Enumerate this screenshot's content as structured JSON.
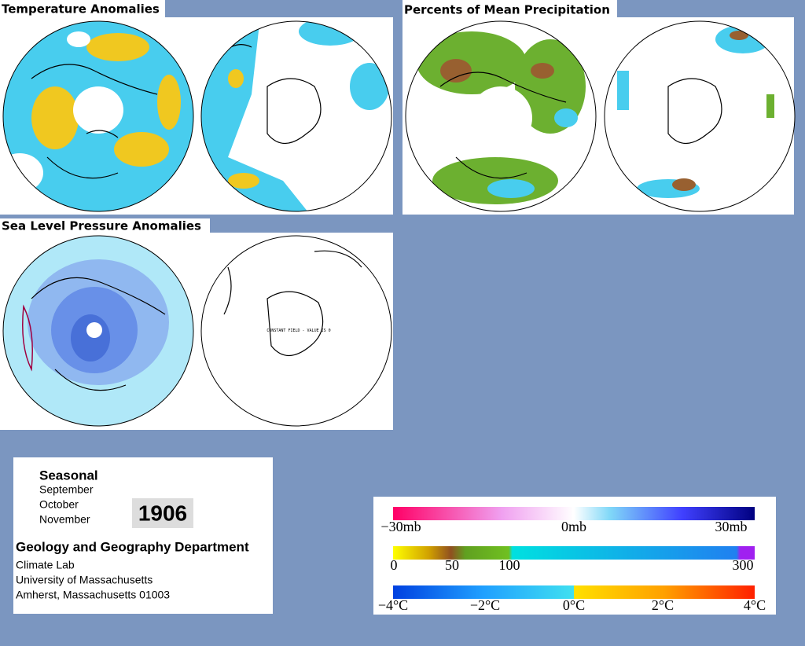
{
  "panels": [
    {
      "title": "Temperature Anomalies"
    },
    {
      "title": "Percents of Mean Precipitation"
    },
    {
      "title": "Sea Level Pressure Anomalies",
      "annotation": "CONSTANT FIELD - VALUE IS 0"
    }
  ],
  "info": {
    "heading": "Seasonal",
    "months": [
      "September",
      "October",
      "November"
    ],
    "year": "1906",
    "department": "Geology and Geography Department",
    "address": [
      "Climate Lab",
      "University of Massachusetts",
      "Amherst, Massachusetts 01003"
    ]
  },
  "legend": {
    "pressure": [
      "−30mb",
      "0mb",
      "30mb"
    ],
    "precipitation": [
      "0",
      "50",
      "100",
      "300"
    ],
    "temperature": [
      "−4°C",
      "−2°C",
      "0°C",
      "2°C",
      "4°C"
    ]
  }
}
